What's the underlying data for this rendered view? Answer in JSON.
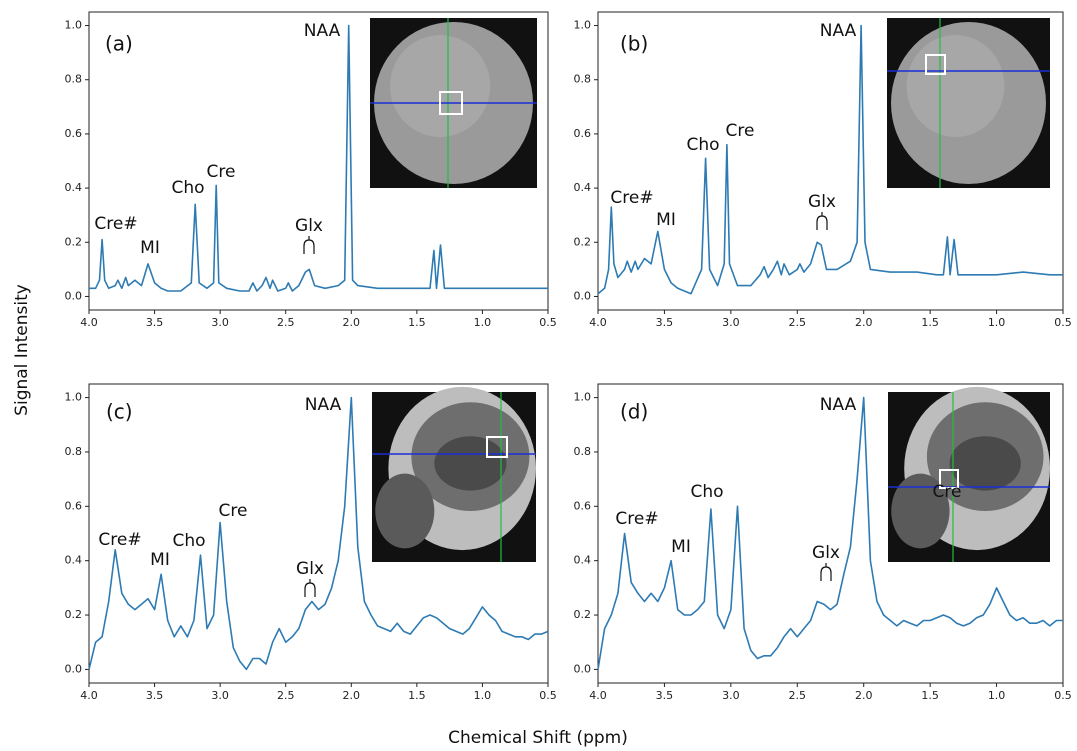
{
  "xlabel": "Chemical Shift (ppm)",
  "ylabel": "Signal Intensity",
  "chart_data": [
    {
      "type": "line",
      "panel_label": "(a)",
      "color": "#2e7bb4",
      "annotations": [
        "Cre#",
        "MI",
        "Cho",
        "Cre",
        "Glx",
        "NAA"
      ],
      "x": [
        4.0,
        3.95,
        3.92,
        3.9,
        3.88,
        3.85,
        3.8,
        3.78,
        3.75,
        3.72,
        3.7,
        3.65,
        3.6,
        3.55,
        3.5,
        3.45,
        3.4,
        3.3,
        3.22,
        3.19,
        3.16,
        3.1,
        3.05,
        3.03,
        3.01,
        2.95,
        2.85,
        2.78,
        2.75,
        2.72,
        2.68,
        2.65,
        2.62,
        2.6,
        2.56,
        2.5,
        2.48,
        2.45,
        2.4,
        2.35,
        2.32,
        2.28,
        2.2,
        2.1,
        2.05,
        2.02,
        1.99,
        1.95,
        1.8,
        1.6,
        1.45,
        1.4,
        1.37,
        1.35,
        1.32,
        1.29,
        1.25,
        1.1,
        1.0,
        0.8,
        0.6,
        0.5
      ],
      "values": [
        0.03,
        0.03,
        0.06,
        0.21,
        0.06,
        0.03,
        0.04,
        0.06,
        0.03,
        0.07,
        0.04,
        0.06,
        0.04,
        0.12,
        0.05,
        0.03,
        0.02,
        0.02,
        0.05,
        0.34,
        0.05,
        0.03,
        0.05,
        0.41,
        0.05,
        0.03,
        0.02,
        0.02,
        0.05,
        0.02,
        0.04,
        0.07,
        0.03,
        0.06,
        0.02,
        0.03,
        0.05,
        0.02,
        0.04,
        0.09,
        0.1,
        0.04,
        0.03,
        0.04,
        0.06,
        1.0,
        0.06,
        0.04,
        0.03,
        0.03,
        0.03,
        0.03,
        0.17,
        0.03,
        0.19,
        0.03,
        0.03,
        0.03,
        0.03,
        0.03,
        0.03,
        0.03
      ],
      "xlim": [
        4.0,
        0.5
      ],
      "ylim": [
        -0.05,
        1.05
      ],
      "xticks": [
        {
          "value": 4.0,
          "label": "4.0"
        },
        {
          "value": 3.5,
          "label": "3.5"
        },
        {
          "value": 3.0,
          "label": "3.0"
        },
        {
          "value": 2.5,
          "label": "2.5"
        },
        {
          "value": 2.0,
          "label": "2.0"
        },
        {
          "value": 1.5,
          "label": "1.5"
        },
        {
          "value": 1.0,
          "label": "1.0"
        },
        {
          "value": 0.5,
          "label": "0.5"
        }
      ],
      "yticks": [
        {
          "value": 0,
          "label": "0.0"
        },
        {
          "value": 0.2,
          "label": "0.2"
        },
        {
          "value": 0.4,
          "label": "0.4"
        },
        {
          "value": 0.6,
          "label": "0.6"
        },
        {
          "value": 0.8,
          "label": "0.8"
        },
        {
          "value": 1.0,
          "label": "1.0"
        }
      ]
    },
    {
      "type": "line",
      "panel_label": "(b)",
      "color": "#2e7bb4",
      "annotations": [
        "Cre#",
        "MI",
        "Cho",
        "Cre",
        "Glx",
        "NAA"
      ],
      "x": [
        4.0,
        3.95,
        3.92,
        3.9,
        3.88,
        3.85,
        3.8,
        3.78,
        3.75,
        3.72,
        3.7,
        3.65,
        3.6,
        3.55,
        3.5,
        3.45,
        3.4,
        3.3,
        3.22,
        3.19,
        3.16,
        3.1,
        3.05,
        3.03,
        3.01,
        2.95,
        2.85,
        2.78,
        2.75,
        2.72,
        2.68,
        2.65,
        2.62,
        2.6,
        2.56,
        2.5,
        2.48,
        2.45,
        2.4,
        2.35,
        2.32,
        2.28,
        2.2,
        2.1,
        2.05,
        2.02,
        1.99,
        1.95,
        1.8,
        1.6,
        1.45,
        1.4,
        1.37,
        1.35,
        1.32,
        1.29,
        1.25,
        1.1,
        1.0,
        0.8,
        0.6,
        0.5
      ],
      "values": [
        0.01,
        0.03,
        0.1,
        0.33,
        0.12,
        0.07,
        0.1,
        0.13,
        0.09,
        0.13,
        0.1,
        0.14,
        0.12,
        0.24,
        0.1,
        0.05,
        0.03,
        0.01,
        0.1,
        0.51,
        0.1,
        0.04,
        0.12,
        0.56,
        0.12,
        0.04,
        0.04,
        0.08,
        0.11,
        0.07,
        0.1,
        0.13,
        0.08,
        0.12,
        0.08,
        0.1,
        0.12,
        0.09,
        0.12,
        0.2,
        0.19,
        0.1,
        0.1,
        0.13,
        0.2,
        1.0,
        0.2,
        0.1,
        0.09,
        0.09,
        0.08,
        0.08,
        0.22,
        0.08,
        0.21,
        0.08,
        0.08,
        0.08,
        0.08,
        0.09,
        0.08,
        0.08
      ],
      "xlim": [
        4.0,
        0.5
      ],
      "ylim": [
        -0.05,
        1.05
      ],
      "xticks": [
        {
          "value": 4.0,
          "label": "4.0"
        },
        {
          "value": 3.5,
          "label": "3.5"
        },
        {
          "value": 3.0,
          "label": "3.0"
        },
        {
          "value": 2.5,
          "label": "2.5"
        },
        {
          "value": 2.0,
          "label": "2.0"
        },
        {
          "value": 1.5,
          "label": "1.5"
        },
        {
          "value": 1.0,
          "label": "1.0"
        },
        {
          "value": 0.5,
          "label": "0.5"
        }
      ],
      "yticks": [
        {
          "value": 0,
          "label": "0.0"
        },
        {
          "value": 0.2,
          "label": "0.2"
        },
        {
          "value": 0.4,
          "label": "0.4"
        },
        {
          "value": 0.6,
          "label": "0.6"
        },
        {
          "value": 0.8,
          "label": "0.8"
        },
        {
          "value": 1.0,
          "label": "1.0"
        }
      ]
    },
    {
      "type": "line",
      "panel_label": "(c)",
      "color": "#2e7bb4",
      "annotations": [
        "Cre#",
        "MI",
        "Cho",
        "Cre",
        "Glx",
        "NAA"
      ],
      "x": [
        4.0,
        3.95,
        3.9,
        3.85,
        3.8,
        3.75,
        3.7,
        3.65,
        3.6,
        3.55,
        3.5,
        3.45,
        3.4,
        3.35,
        3.3,
        3.25,
        3.2,
        3.15,
        3.1,
        3.05,
        3.0,
        2.95,
        2.9,
        2.85,
        2.8,
        2.75,
        2.7,
        2.65,
        2.6,
        2.55,
        2.5,
        2.45,
        2.4,
        2.35,
        2.3,
        2.25,
        2.2,
        2.15,
        2.1,
        2.05,
        2.0,
        1.95,
        1.9,
        1.85,
        1.8,
        1.75,
        1.7,
        1.65,
        1.6,
        1.55,
        1.5,
        1.45,
        1.4,
        1.35,
        1.3,
        1.25,
        1.2,
        1.15,
        1.1,
        1.05,
        1.0,
        0.95,
        0.9,
        0.85,
        0.8,
        0.75,
        0.7,
        0.65,
        0.6,
        0.55,
        0.5
      ],
      "values": [
        0.0,
        0.1,
        0.12,
        0.25,
        0.44,
        0.28,
        0.24,
        0.22,
        0.24,
        0.26,
        0.22,
        0.35,
        0.18,
        0.12,
        0.16,
        0.12,
        0.18,
        0.42,
        0.15,
        0.2,
        0.54,
        0.25,
        0.08,
        0.03,
        0.0,
        0.04,
        0.04,
        0.02,
        0.1,
        0.15,
        0.1,
        0.12,
        0.15,
        0.22,
        0.25,
        0.22,
        0.24,
        0.3,
        0.4,
        0.6,
        1.0,
        0.45,
        0.25,
        0.2,
        0.16,
        0.15,
        0.14,
        0.17,
        0.14,
        0.13,
        0.16,
        0.19,
        0.2,
        0.19,
        0.17,
        0.15,
        0.14,
        0.13,
        0.15,
        0.19,
        0.23,
        0.2,
        0.18,
        0.14,
        0.13,
        0.12,
        0.12,
        0.11,
        0.13,
        0.13,
        0.14
      ],
      "xlim": [
        4.0,
        0.5
      ],
      "ylim": [
        -0.05,
        1.05
      ],
      "xticks": [
        {
          "value": 4.0,
          "label": "4.0"
        },
        {
          "value": 3.5,
          "label": "3.5"
        },
        {
          "value": 3.0,
          "label": "3.0"
        },
        {
          "value": 2.5,
          "label": "2.5"
        },
        {
          "value": 2.0,
          "label": "2.0"
        },
        {
          "value": 1.5,
          "label": "1.5"
        },
        {
          "value": 1.0,
          "label": "1.0"
        },
        {
          "value": 0.5,
          "label": "0.5"
        }
      ],
      "yticks": [
        {
          "value": 0,
          "label": "0.0"
        },
        {
          "value": 0.2,
          "label": "0.2"
        },
        {
          "value": 0.4,
          "label": "0.4"
        },
        {
          "value": 0.6,
          "label": "0.6"
        },
        {
          "value": 0.8,
          "label": "0.8"
        },
        {
          "value": 1.0,
          "label": "1.0"
        }
      ]
    },
    {
      "type": "line",
      "panel_label": "(d)",
      "color": "#2e7bb4",
      "annotations": [
        "Cre#",
        "MI",
        "Cho",
        "Cre",
        "Glx",
        "NAA"
      ],
      "x": [
        4.0,
        3.95,
        3.9,
        3.85,
        3.8,
        3.75,
        3.7,
        3.65,
        3.6,
        3.55,
        3.5,
        3.45,
        3.4,
        3.35,
        3.3,
        3.25,
        3.2,
        3.15,
        3.1,
        3.05,
        3.0,
        2.95,
        2.9,
        2.85,
        2.8,
        2.75,
        2.7,
        2.65,
        2.6,
        2.55,
        2.5,
        2.45,
        2.4,
        2.35,
        2.3,
        2.25,
        2.2,
        2.15,
        2.1,
        2.05,
        2.0,
        1.95,
        1.9,
        1.85,
        1.8,
        1.75,
        1.7,
        1.65,
        1.6,
        1.55,
        1.5,
        1.45,
        1.4,
        1.35,
        1.3,
        1.25,
        1.2,
        1.15,
        1.1,
        1.05,
        1.0,
        0.95,
        0.9,
        0.85,
        0.8,
        0.75,
        0.7,
        0.65,
        0.6,
        0.55,
        0.5
      ],
      "values": [
        0.0,
        0.15,
        0.2,
        0.28,
        0.5,
        0.32,
        0.28,
        0.25,
        0.28,
        0.25,
        0.3,
        0.4,
        0.22,
        0.2,
        0.2,
        0.22,
        0.25,
        0.59,
        0.2,
        0.15,
        0.22,
        0.6,
        0.15,
        0.07,
        0.04,
        0.05,
        0.05,
        0.08,
        0.12,
        0.15,
        0.12,
        0.15,
        0.18,
        0.25,
        0.24,
        0.22,
        0.24,
        0.35,
        0.45,
        0.7,
        1.0,
        0.4,
        0.25,
        0.2,
        0.18,
        0.16,
        0.18,
        0.17,
        0.16,
        0.18,
        0.18,
        0.19,
        0.2,
        0.19,
        0.17,
        0.16,
        0.17,
        0.19,
        0.2,
        0.24,
        0.3,
        0.25,
        0.2,
        0.18,
        0.19,
        0.17,
        0.17,
        0.18,
        0.16,
        0.18,
        0.18
      ],
      "xlim": [
        4.0,
        0.5
      ],
      "ylim": [
        -0.05,
        1.05
      ],
      "xticks": [
        {
          "value": 4.0,
          "label": "4.0"
        },
        {
          "value": 3.5,
          "label": "3.5"
        },
        {
          "value": 3.0,
          "label": "3.0"
        },
        {
          "value": 2.5,
          "label": "2.5"
        },
        {
          "value": 2.0,
          "label": "2.0"
        },
        {
          "value": 1.5,
          "label": "1.5"
        },
        {
          "value": 1.0,
          "label": "1.0"
        },
        {
          "value": 0.5,
          "label": "0.5"
        }
      ],
      "yticks": [
        {
          "value": 0,
          "label": "0.0"
        },
        {
          "value": 0.2,
          "label": "0.2"
        },
        {
          "value": 0.4,
          "label": "0.4"
        },
        {
          "value": 0.6,
          "label": "0.6"
        },
        {
          "value": 0.8,
          "label": "0.8"
        },
        {
          "value": 1.0,
          "label": "1.0"
        }
      ]
    }
  ]
}
